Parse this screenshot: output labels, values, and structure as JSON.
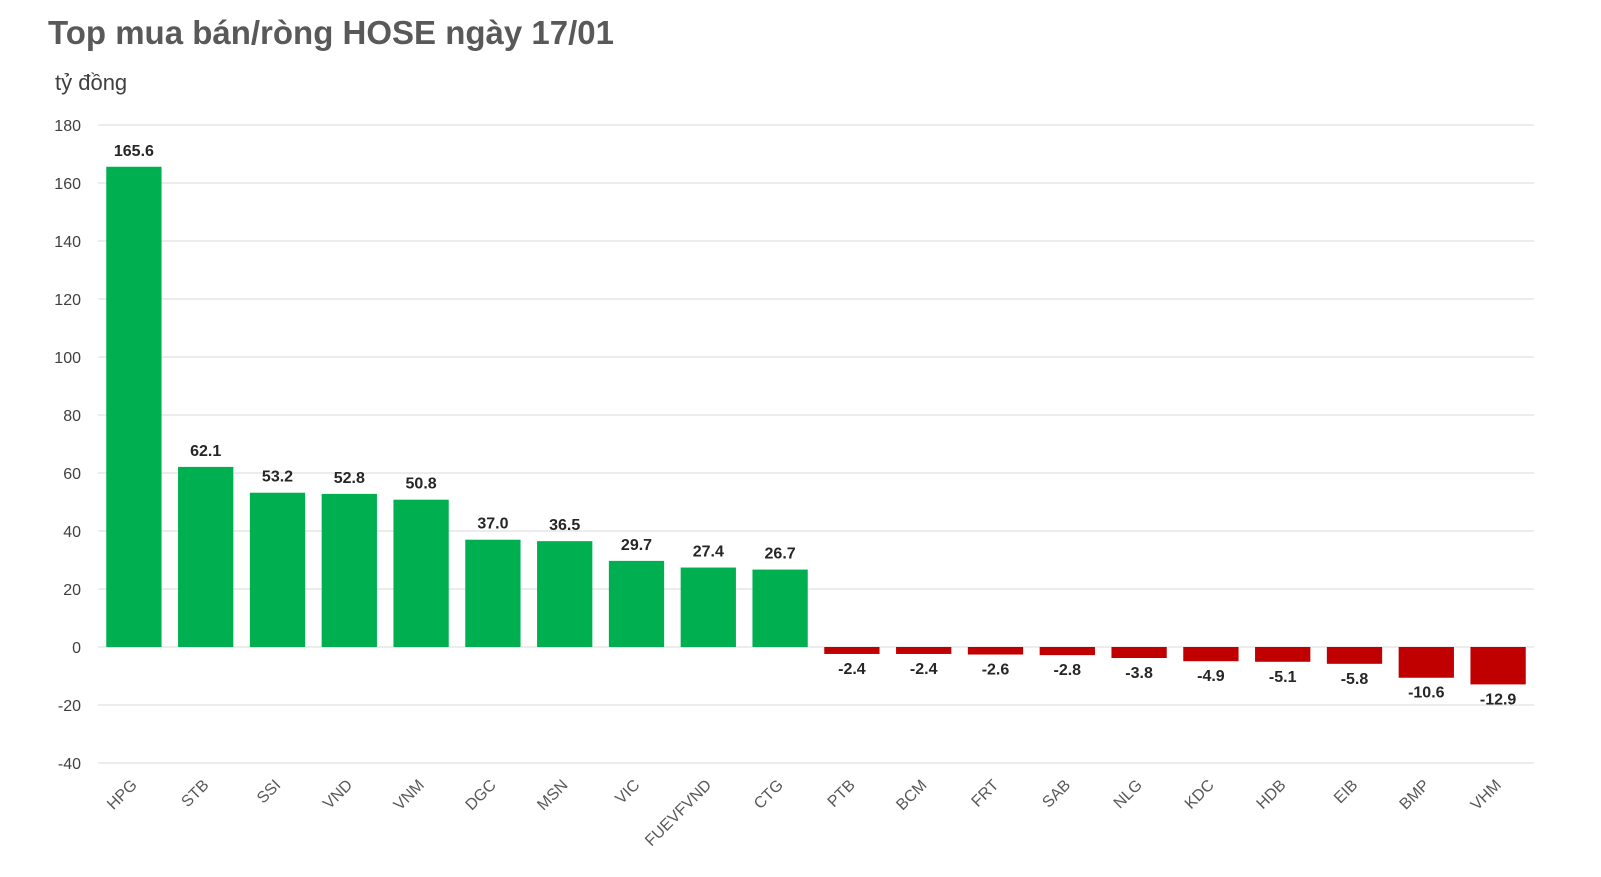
{
  "chart_data": {
    "type": "bar",
    "title": "Top mua bán/ròng HOSE ngày 17/01",
    "ylabel": "tỷ đồng",
    "xlabel": "",
    "ylim": [
      -40,
      180
    ],
    "yticks": [
      180,
      160,
      140,
      120,
      100,
      80,
      60,
      40,
      20,
      0,
      -20,
      -40
    ],
    "grid": true,
    "categories": [
      "HPG",
      "STB",
      "SSI",
      "VND",
      "VNM",
      "DGC",
      "MSN",
      "VIC",
      "FUEVFVND",
      "CTG",
      "PTB",
      "BCM",
      "FRT",
      "SAB",
      "NLG",
      "KDC",
      "HDB",
      "EIB",
      "BMP",
      "VHM"
    ],
    "values": [
      165.6,
      62.1,
      53.2,
      52.8,
      50.8,
      37.0,
      36.5,
      29.7,
      27.4,
      26.7,
      -2.4,
      -2.4,
      -2.6,
      -2.8,
      -3.8,
      -4.9,
      -5.1,
      -5.8,
      -10.6,
      -12.9
    ],
    "value_labels": [
      "165.6",
      "62.1",
      "53.2",
      "52.8",
      "50.8",
      "37.0",
      "36.5",
      "29.7",
      "27.4",
      "26.7",
      "-2.4",
      "-2.4",
      "-2.6",
      "-2.8",
      "-3.8",
      "-4.9",
      "-5.1",
      "-5.8",
      "-10.6",
      "-12.9"
    ],
    "colors": {
      "positive": "#00b050",
      "negative": "#c00000"
    }
  }
}
